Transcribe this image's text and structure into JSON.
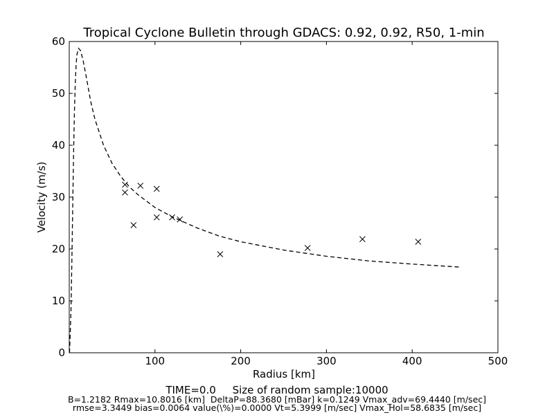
{
  "chart_data": {
    "type": "scatter",
    "title": "Tropical Cyclone Bulletin through GDACS: 0.92, 0.92, R50, 1-min",
    "xlabel": "Radius [km]",
    "ylabel": "Velocity (m/s)",
    "xlim": [
      0,
      500
    ],
    "ylim": [
      0,
      60
    ],
    "xticks": [
      "100",
      "200",
      "300",
      "400",
      "500"
    ],
    "yticks": [
      "0",
      "10",
      "20",
      "30",
      "40",
      "50",
      "60"
    ],
    "grid": false,
    "series": [
      {
        "marker": "x",
        "color": "#000000",
        "points": [
          {
            "x": 65,
            "y": 32.4
          },
          {
            "x": 65,
            "y": 30.9
          },
          {
            "x": 75,
            "y": 24.6
          },
          {
            "x": 83,
            "y": 32.2
          },
          {
            "x": 102,
            "y": 31.6
          },
          {
            "x": 102,
            "y": 26.1
          },
          {
            "x": 120,
            "y": 26.1
          },
          {
            "x": 129,
            "y": 25.7
          },
          {
            "x": 176,
            "y": 19.0
          },
          {
            "x": 278,
            "y": 20.2
          },
          {
            "x": 342,
            "y": 21.9
          },
          {
            "x": 407,
            "y": 21.4
          }
        ]
      },
      {
        "line": "dashed",
        "color": "#000000",
        "points": [
          {
            "x": 0.3,
            "y": 0
          },
          {
            "x": 2,
            "y": 8
          },
          {
            "x": 3,
            "y": 17
          },
          {
            "x": 4,
            "y": 28
          },
          {
            "x": 5,
            "y": 38
          },
          {
            "x": 6,
            "y": 46
          },
          {
            "x": 7,
            "y": 52
          },
          {
            "x": 8,
            "y": 55.5
          },
          {
            "x": 9,
            "y": 57.5
          },
          {
            "x": 10.8,
            "y": 58.7
          },
          {
            "x": 13,
            "y": 58.3
          },
          {
            "x": 16,
            "y": 56.5
          },
          {
            "x": 20,
            "y": 53
          },
          {
            "x": 25,
            "y": 48.5
          },
          {
            "x": 30,
            "y": 45
          },
          {
            "x": 40,
            "y": 40
          },
          {
            "x": 50,
            "y": 36.5
          },
          {
            "x": 60,
            "y": 34
          },
          {
            "x": 70,
            "y": 32
          },
          {
            "x": 80,
            "y": 30.5
          },
          {
            "x": 100,
            "y": 28
          },
          {
            "x": 120,
            "y": 26.2
          },
          {
            "x": 150,
            "y": 24
          },
          {
            "x": 175,
            "y": 22.5
          },
          {
            "x": 200,
            "y": 21.4
          },
          {
            "x": 250,
            "y": 19.8
          },
          {
            "x": 300,
            "y": 18.6
          },
          {
            "x": 350,
            "y": 17.7
          },
          {
            "x": 400,
            "y": 17.1
          },
          {
            "x": 457,
            "y": 16.5
          }
        ]
      }
    ]
  },
  "footer": {
    "line1": "TIME=0.0     Size of random sample:10000",
    "line2": "B=1.2182 Rmax=10.8016 [km]  DeltaP=88.3680 [mBar] k=0.1249 Vmax_adv=69.4440 [m/sec]",
    "line3": "rmse=3.3449 bias=0.0064 value(\\%)=0.0000 Vt=5.3999 [m/sec] Vmax_Hol=58.6835 [m/sec]"
  }
}
